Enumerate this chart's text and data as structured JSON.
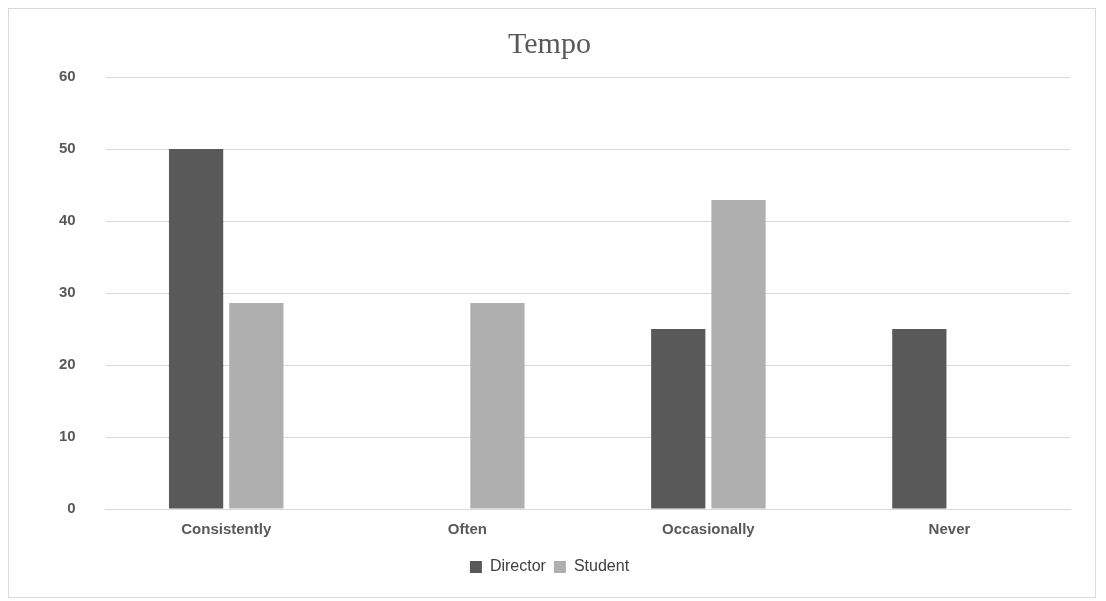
{
  "chart_data": {
    "type": "bar",
    "title": "Tempo",
    "categories": [
      "Consistently",
      "Often",
      "Occasionally",
      "Never"
    ],
    "series": [
      {
        "name": "Director",
        "color": "#595959",
        "values": [
          50,
          0,
          25,
          25
        ]
      },
      {
        "name": "Student",
        "color": "#afafaf",
        "values": [
          28.6,
          28.6,
          42.9,
          0
        ]
      }
    ],
    "ylim": [
      0,
      60
    ],
    "yticks": [
      0,
      10,
      20,
      30,
      40,
      50,
      60
    ],
    "grid": "y",
    "legend": "bottom"
  }
}
